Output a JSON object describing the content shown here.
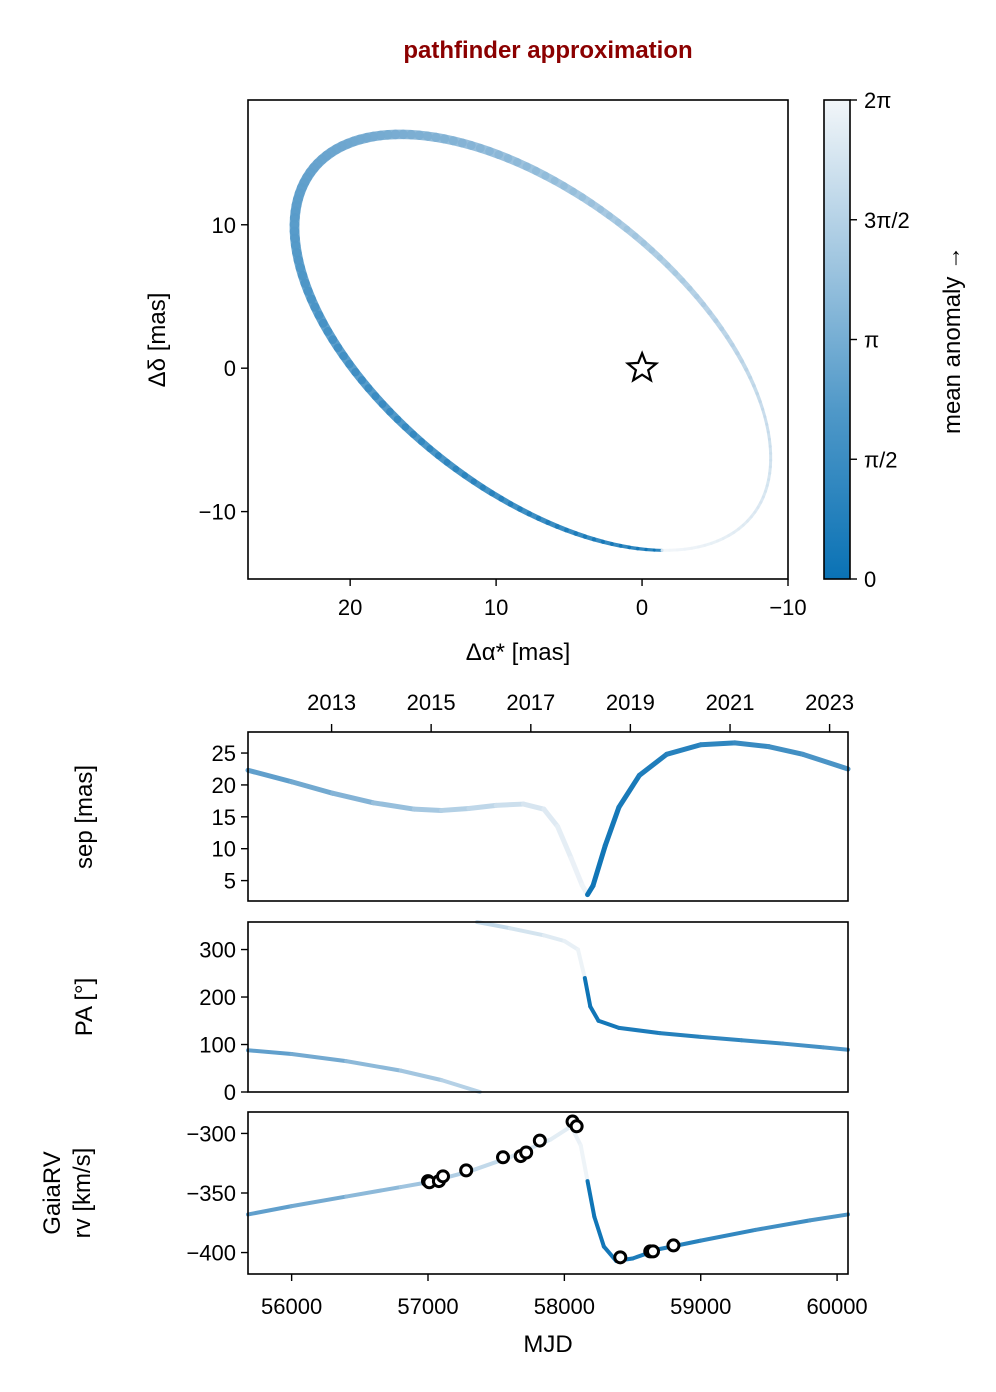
{
  "title": "pathfinder approximation",
  "colors": {
    "title": "#8b0000",
    "curve_dark": "#0a72b5",
    "curve_light": "#f2f6f9",
    "marker_fill": "#ffffff",
    "marker_edge": "#000000"
  },
  "chart_data": [
    {
      "id": "orbit",
      "type": "line",
      "xlabel": "Δα* [mas]",
      "ylabel": "Δδ [mas]",
      "xlim": [
        27,
        -10
      ],
      "ylim": [
        -14.7,
        18.7
      ],
      "x_ticks": [
        20,
        10,
        0,
        -10
      ],
      "x_tick_labels": [
        "20",
        "10",
        "0",
        "−10"
      ],
      "y_ticks": [
        10,
        0,
        -10
      ],
      "y_tick_labels": [
        "10",
        "0",
        "−10"
      ],
      "ellipse": {
        "center": [
          7.5,
          1.8
        ],
        "semi_major": 19.3,
        "semi_minor": 10.2,
        "orientation_deg": 39
      },
      "series_note_color": "mean anomaly",
      "star_marker": {
        "x": 0,
        "y": 0
      }
    },
    {
      "id": "colorbar",
      "type": "heatmap",
      "label": "mean anomaly →",
      "range": [
        0,
        6.2832
      ],
      "tick_values": [
        0,
        1.5708,
        3.1416,
        4.7124,
        6.2832
      ],
      "tick_labels": [
        "0",
        "π/2",
        "π",
        "3π/2",
        "2π"
      ]
    },
    {
      "id": "sep",
      "type": "line",
      "ylabel": "sep [mas]",
      "xlim": [
        55680,
        60080
      ],
      "ylim": [
        1.8,
        28.3
      ],
      "y_ticks": [
        5,
        10,
        15,
        20,
        25
      ],
      "y_tick_labels": [
        "5",
        "10",
        "15",
        "20",
        "25"
      ],
      "top_axis_ticks_mjd": [
        56293,
        57023,
        57754,
        58484,
        59215,
        59945
      ],
      "top_axis_labels": [
        "2013",
        "2015",
        "2017",
        "2019",
        "2021",
        "2023"
      ],
      "points": [
        [
          55680,
          22.3
        ],
        [
          56000,
          20.5
        ],
        [
          56300,
          18.7
        ],
        [
          56600,
          17.2
        ],
        [
          56900,
          16.2
        ],
        [
          57100,
          16.0
        ],
        [
          57300,
          16.3
        ],
        [
          57500,
          16.8
        ],
        [
          57700,
          17.0
        ],
        [
          57850,
          16.2
        ],
        [
          57950,
          13.5
        ],
        [
          58050,
          8.5
        ],
        [
          58130,
          4.3
        ],
        [
          58170,
          2.8
        ],
        [
          58210,
          4.2
        ],
        [
          58300,
          10.5
        ],
        [
          58400,
          16.5
        ],
        [
          58550,
          21.5
        ],
        [
          58750,
          24.8
        ],
        [
          59000,
          26.3
        ],
        [
          59250,
          26.6
        ],
        [
          59500,
          26.0
        ],
        [
          59750,
          24.8
        ],
        [
          60080,
          22.5
        ]
      ]
    },
    {
      "id": "pa",
      "type": "line",
      "ylabel": "PA [°]",
      "xlim": [
        55680,
        60080
      ],
      "ylim": [
        0,
        358
      ],
      "y_ticks": [
        0,
        100,
        200,
        300
      ],
      "y_tick_labels": [
        "0",
        "100",
        "200",
        "300"
      ],
      "segments": [
        [
          [
            55680,
            88
          ],
          [
            56000,
            80
          ],
          [
            56400,
            65
          ],
          [
            56800,
            45
          ],
          [
            57100,
            25
          ],
          [
            57380,
            0
          ]
        ],
        [
          [
            57360,
            358
          ],
          [
            57600,
            345
          ],
          [
            57850,
            330
          ],
          [
            58000,
            318
          ],
          [
            58100,
            300
          ],
          [
            58150,
            240
          ],
          [
            58190,
            180
          ],
          [
            58250,
            150
          ],
          [
            58400,
            135
          ],
          [
            58700,
            124
          ],
          [
            59000,
            116
          ],
          [
            59300,
            109
          ],
          [
            59600,
            102
          ],
          [
            59900,
            94
          ],
          [
            60080,
            89
          ]
        ]
      ]
    },
    {
      "id": "rv",
      "type": "scatter",
      "ylabel_lines": [
        "GaiaRV",
        "rv [km/s]"
      ],
      "xlabel": "MJD",
      "xlim": [
        55680,
        60080
      ],
      "ylim": [
        -418,
        -282
      ],
      "x_ticks": [
        56000,
        57000,
        58000,
        59000,
        60000
      ],
      "x_tick_labels": [
        "56000",
        "57000",
        "58000",
        "59000",
        "60000"
      ],
      "y_ticks": [
        -300,
        -350,
        -400
      ],
      "y_tick_labels": [
        "−300",
        "−350",
        "−400"
      ],
      "model": [
        [
          55680,
          -368
        ],
        [
          56000,
          -361
        ],
        [
          56400,
          -353
        ],
        [
          56800,
          -345
        ],
        [
          57000,
          -341
        ],
        [
          57300,
          -332
        ],
        [
          57600,
          -320
        ],
        [
          57900,
          -305
        ],
        [
          58050,
          -294
        ],
        [
          58120,
          -310
        ],
        [
          58170,
          -340
        ],
        [
          58220,
          -370
        ],
        [
          58290,
          -395
        ],
        [
          58380,
          -407
        ],
        [
          58500,
          -405
        ],
        [
          58700,
          -397
        ],
        [
          59000,
          -390
        ],
        [
          59400,
          -381
        ],
        [
          59800,
          -373
        ],
        [
          60080,
          -368
        ]
      ],
      "observations": [
        [
          57000,
          -340
        ],
        [
          57010,
          -341
        ],
        [
          57080,
          -340
        ],
        [
          57110,
          -336
        ],
        [
          57280,
          -331
        ],
        [
          57550,
          -320
        ],
        [
          57680,
          -319
        ],
        [
          57720,
          -316
        ],
        [
          57820,
          -306
        ],
        [
          58060,
          -290
        ],
        [
          58090,
          -294
        ],
        [
          58410,
          -404
        ],
        [
          58630,
          -399
        ],
        [
          58650,
          -399
        ],
        [
          58800,
          -394
        ]
      ]
    }
  ]
}
